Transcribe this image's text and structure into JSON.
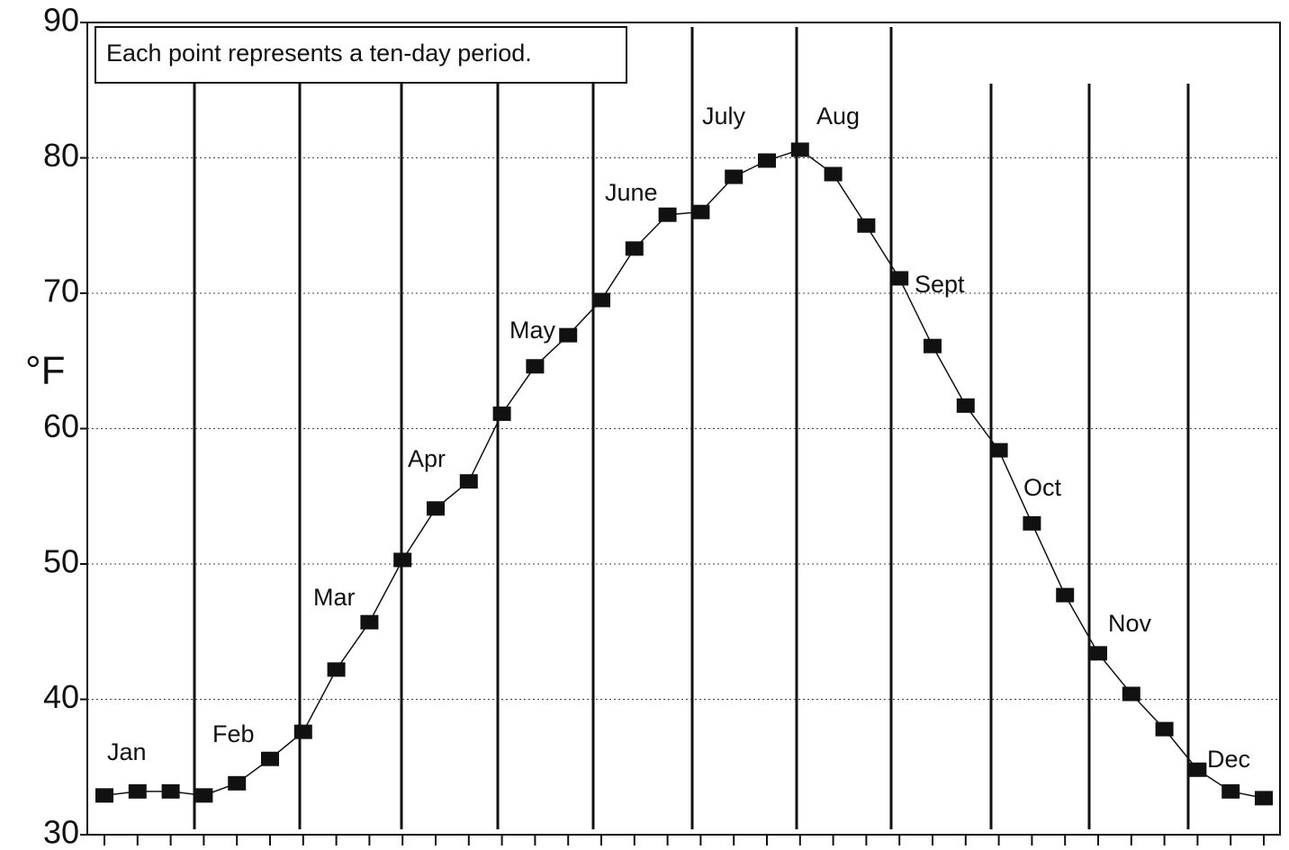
{
  "chart_data": {
    "type": "line",
    "note": "Each point represents a ten-day period.",
    "y_label": "°F",
    "categories": [
      null,
      null,
      null,
      null,
      null,
      null,
      null,
      null,
      null,
      null,
      null,
      null,
      null,
      null,
      null,
      null,
      null,
      null,
      null,
      null,
      null,
      null,
      null,
      null,
      null,
      null,
      null,
      null,
      null,
      null,
      null,
      null,
      null,
      null,
      null,
      null
    ],
    "values": [
      32.9,
      33.2,
      33.2,
      32.9,
      33.8,
      35.6,
      37.6,
      42.2,
      45.7,
      50.3,
      54.1,
      56.1,
      61.1,
      64.6,
      66.9,
      69.5,
      73.3,
      75.8,
      76.0,
      78.6,
      79.8,
      80.6,
      78.8,
      75.0,
      71.1,
      66.1,
      61.7,
      58.4,
      53.0,
      47.7,
      43.4,
      40.4,
      37.8,
      34.8,
      33.2,
      32.7
    ],
    "color": "#111111",
    "annotations": [
      "Jan",
      "Feb",
      "Mar",
      "Apr",
      "May",
      "June",
      "July",
      "Aug",
      "Sept",
      "Oct",
      "Nov",
      "Dec"
    ],
    "ylim": [
      30,
      90
    ],
    "yticks": [
      30,
      40,
      50,
      60,
      70,
      80,
      90
    ],
    "grid": true
  }
}
